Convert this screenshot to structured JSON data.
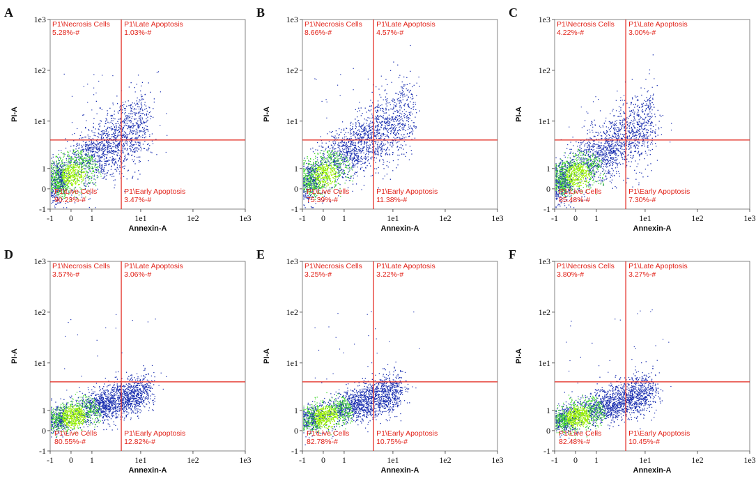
{
  "figure": {
    "x_axis_title": "Annexin-A",
    "y_axis_title": "PI-A",
    "x_tick_labels": [
      "-1",
      "0",
      "1",
      "1e1",
      "1e2",
      "1e3"
    ],
    "y_tick_labels": [
      "-1",
      "0",
      "1",
      "1e1",
      "1e2",
      "1e3"
    ],
    "quadrant_names": {
      "upper_left": "P1\\Necrosis Cells",
      "upper_right": "P1\\Late Apoptosis",
      "lower_left": "P1\\Live Cells",
      "lower_right": "P1\\Early Apoptosis"
    },
    "colors": {
      "gate": "#e2231a",
      "dots_sparse": "#1a2fb0",
      "dots_dense": "#3fd62a",
      "dots_core": "#9ef000"
    }
  },
  "panels": [
    {
      "letter": "A",
      "ul": "5.28%-#",
      "ur": "1.03%-#",
      "ll": "90.23%-#",
      "lr": "3.47%-#"
    },
    {
      "letter": "B",
      "ul": "8.66%-#",
      "ur": "4.57%-#",
      "ll": "75.39%-#",
      "lr": "11.38%-#"
    },
    {
      "letter": "C",
      "ul": "4.22%-#",
      "ur": "3.00%-#",
      "ll": "85.48%-#",
      "lr": "7.30%-#"
    },
    {
      "letter": "D",
      "ul": "3.57%-#",
      "ur": "3.06%-#",
      "ll": "80.55%-#",
      "lr": "12.82%-#"
    },
    {
      "letter": "E",
      "ul": "3.25%-#",
      "ur": "3.22%-#",
      "ll": "82.78%-#",
      "lr": "10.75%-#"
    },
    {
      "letter": "F",
      "ul": "3.80%-#",
      "ur": "3.27%-#",
      "ll": "82.48%-#",
      "lr": "10.45%-#"
    }
  ],
  "chart_data": {
    "type": "scatter",
    "xlabel": "Annexin-A",
    "ylabel": "PI-A",
    "x_ticks": [
      "-1",
      "0",
      "1",
      "1e1",
      "1e2",
      "1e3"
    ],
    "y_ticks": [
      "-1",
      "0",
      "1",
      "1e1",
      "1e2",
      "1e3"
    ],
    "x_gate": 4,
    "y_gate": 4,
    "panels": [
      {
        "letter": "A",
        "quadrants": {
          "P1\\Necrosis Cells": 5.28,
          "P1\\Late Apoptosis": 1.03,
          "P1\\Live Cells": 90.23,
          "P1\\Early Apoptosis": 3.47
        }
      },
      {
        "letter": "B",
        "quadrants": {
          "P1\\Necrosis Cells": 8.66,
          "P1\\Late Apoptosis": 4.57,
          "P1\\Live Cells": 75.39,
          "P1\\Early Apoptosis": 11.38
        }
      },
      {
        "letter": "C",
        "quadrants": {
          "P1\\Necrosis Cells": 4.22,
          "P1\\Late Apoptosis": 3.0,
          "P1\\Live Cells": 85.48,
          "P1\\Early Apoptosis": 7.3
        }
      },
      {
        "letter": "D",
        "quadrants": {
          "P1\\Necrosis Cells": 3.57,
          "P1\\Late Apoptosis": 3.06,
          "P1\\Live Cells": 80.55,
          "P1\\Early Apoptosis": 12.82
        }
      },
      {
        "letter": "E",
        "quadrants": {
          "P1\\Necrosis Cells": 3.25,
          "P1\\Late Apoptosis": 3.22,
          "P1\\Live Cells": 82.78,
          "P1\\Early Apoptosis": 10.75
        }
      },
      {
        "letter": "F",
        "quadrants": {
          "P1\\Necrosis Cells": 3.8,
          "P1\\Late Apoptosis": 3.27,
          "P1\\Live Cells": 82.48,
          "P1\\Early Apoptosis": 10.45
        }
      }
    ]
  }
}
